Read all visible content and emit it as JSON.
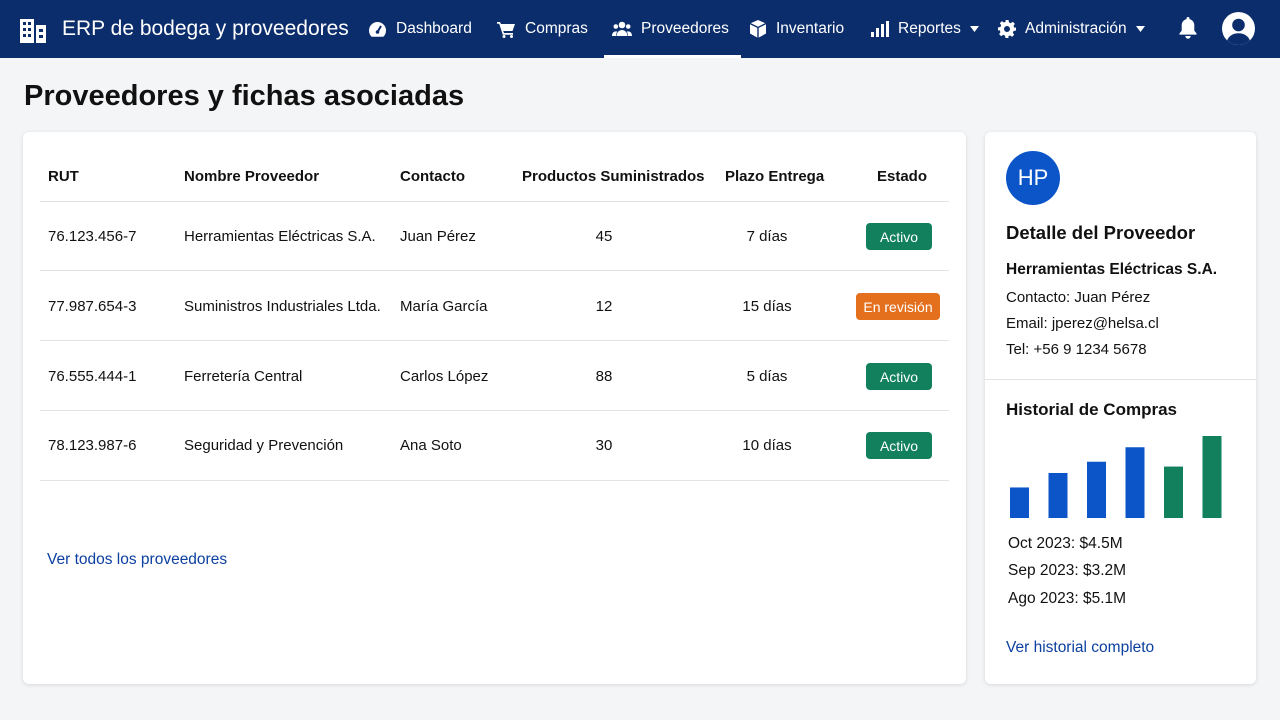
{
  "header": {
    "title": "ERP de bodega y proveedores",
    "logo_icon": "building-icon",
    "nav": [
      {
        "label": "Dashboard",
        "icon": "gauge-icon"
      },
      {
        "label": "Compras",
        "icon": "cart-icon"
      },
      {
        "label": "Proveedores",
        "icon": "users-icon",
        "active": true
      },
      {
        "label": "Inventario",
        "icon": "box-icon"
      },
      {
        "label": "Reportes",
        "icon": "bar-chart-icon",
        "dropdown": true
      },
      {
        "label": "Administración",
        "icon": "gear-icon",
        "dropdown": true
      }
    ],
    "bell_icon": "bell-icon",
    "user_icon": "user-avatar-icon"
  },
  "page": {
    "title": "Proveedores y fichas asociadas"
  },
  "table": {
    "columns": [
      "RUT",
      "Nombre Proveedor",
      "Contacto",
      "Productos Suministrados",
      "Plazo Entrega",
      "Estado"
    ],
    "rows": [
      {
        "rut": "76.123.456-7",
        "name": "Herramientas Eléctricas S.A.",
        "contact": "Juan Pérez",
        "products": "45",
        "lead": "7 días",
        "status": "Activo"
      },
      {
        "rut": "77.987.654-3",
        "name": "Suministros Industriales Ltda.",
        "contact": "María García",
        "products": "12",
        "lead": "15 días",
        "status": "En revisión"
      },
      {
        "rut": "76.555.444-1",
        "name": "Ferretería Central",
        "contact": "Carlos López",
        "products": "88",
        "lead": "5 días",
        "status": "Activo"
      },
      {
        "rut": "78.123.987-6",
        "name": "Seguridad y Prevención",
        "contact": "Ana Soto",
        "products": "30",
        "lead": "10 días",
        "status": "Activo"
      }
    ],
    "view_all": "Ver todos los proveedores"
  },
  "detail": {
    "avatar": "HP",
    "heading": "Detalle del Proveedor",
    "name": "Herramientas Eléctricas S.A.",
    "contact": "Contacto: Juan Pérez",
    "email": "Email: jperez@helsa.cl",
    "phone": "Tel: +56 9 1234 5678",
    "history_heading": "Historial de Compras",
    "history": [
      {
        "label": "Oct 2023:",
        "value": "$4.5M"
      },
      {
        "label": "Sep 2023:",
        "value": "$3.2M"
      },
      {
        "label": "Ago 2023:",
        "value": "$5.1M"
      }
    ],
    "history_link": "Ver historial completo"
  },
  "chart_data": {
    "type": "bar",
    "values": [
      1.9,
      2.8,
      3.5,
      4.4,
      3.2,
      5.1
    ],
    "colors": [
      "#0b55c8",
      "#0b55c8",
      "#0b55c8",
      "#0b55c8",
      "#12805c",
      "#12805c"
    ],
    "ylim": [
      0,
      5.1
    ]
  },
  "colors": {
    "header": "#0b2d6b",
    "active": "#12805c",
    "review": "#e4701e",
    "link": "#0b3fa0",
    "accent": "#0b55c8"
  }
}
